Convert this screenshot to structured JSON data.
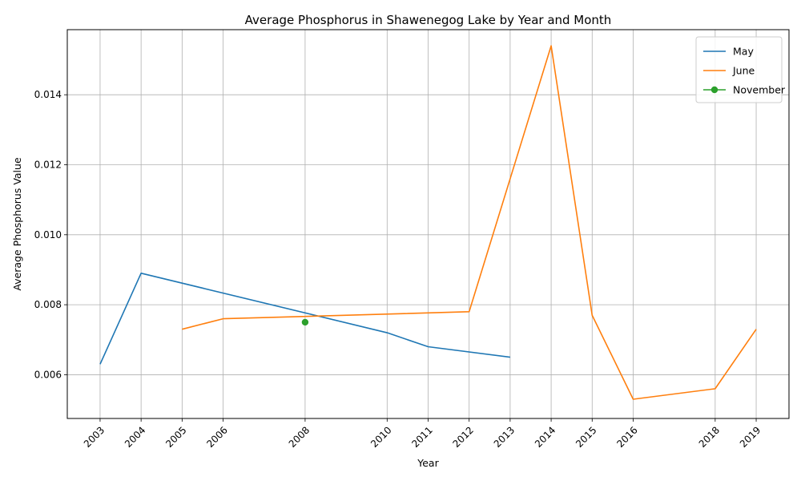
{
  "chart_data": {
    "type": "line",
    "title": "Average Phosphorus in Shawenegog Lake by Year and Month",
    "xlabel": "Year",
    "ylabel": "Average Phosphorus Value",
    "x_ticks": [
      2003,
      2004,
      2005,
      2006,
      2008,
      2010,
      2011,
      2012,
      2013,
      2014,
      2015,
      2016,
      2018,
      2019
    ],
    "xlim": [
      2002.2,
      2019.8
    ],
    "ylim": [
      0.00475,
      0.01586
    ],
    "y_ticks": [
      0.006,
      0.008,
      0.01,
      0.012,
      0.014
    ],
    "y_tick_labels": [
      "0.006",
      "0.008",
      "0.010",
      "0.012",
      "0.014"
    ],
    "grid": true,
    "legend_position": "top-right",
    "series": [
      {
        "name": "May",
        "color": "#1f77b4",
        "marker": false,
        "points": [
          {
            "x": 2003,
            "y": 0.0063
          },
          {
            "x": 2004,
            "y": 0.0089
          },
          {
            "x": 2010,
            "y": 0.0072
          },
          {
            "x": 2011,
            "y": 0.0068
          },
          {
            "x": 2013,
            "y": 0.0065
          }
        ]
      },
      {
        "name": "June",
        "color": "#ff7f0e",
        "marker": false,
        "points": [
          {
            "x": 2005,
            "y": 0.0073
          },
          {
            "x": 2006,
            "y": 0.0076
          },
          {
            "x": 2012,
            "y": 0.0078
          },
          {
            "x": 2014,
            "y": 0.0154
          },
          {
            "x": 2015,
            "y": 0.0077
          },
          {
            "x": 2016,
            "y": 0.0053
          },
          {
            "x": 2018,
            "y": 0.0056
          },
          {
            "x": 2019,
            "y": 0.0073
          }
        ]
      },
      {
        "name": "November",
        "color": "#2ca02c",
        "marker": true,
        "points": [
          {
            "x": 2008,
            "y": 0.0075
          }
        ]
      }
    ]
  }
}
